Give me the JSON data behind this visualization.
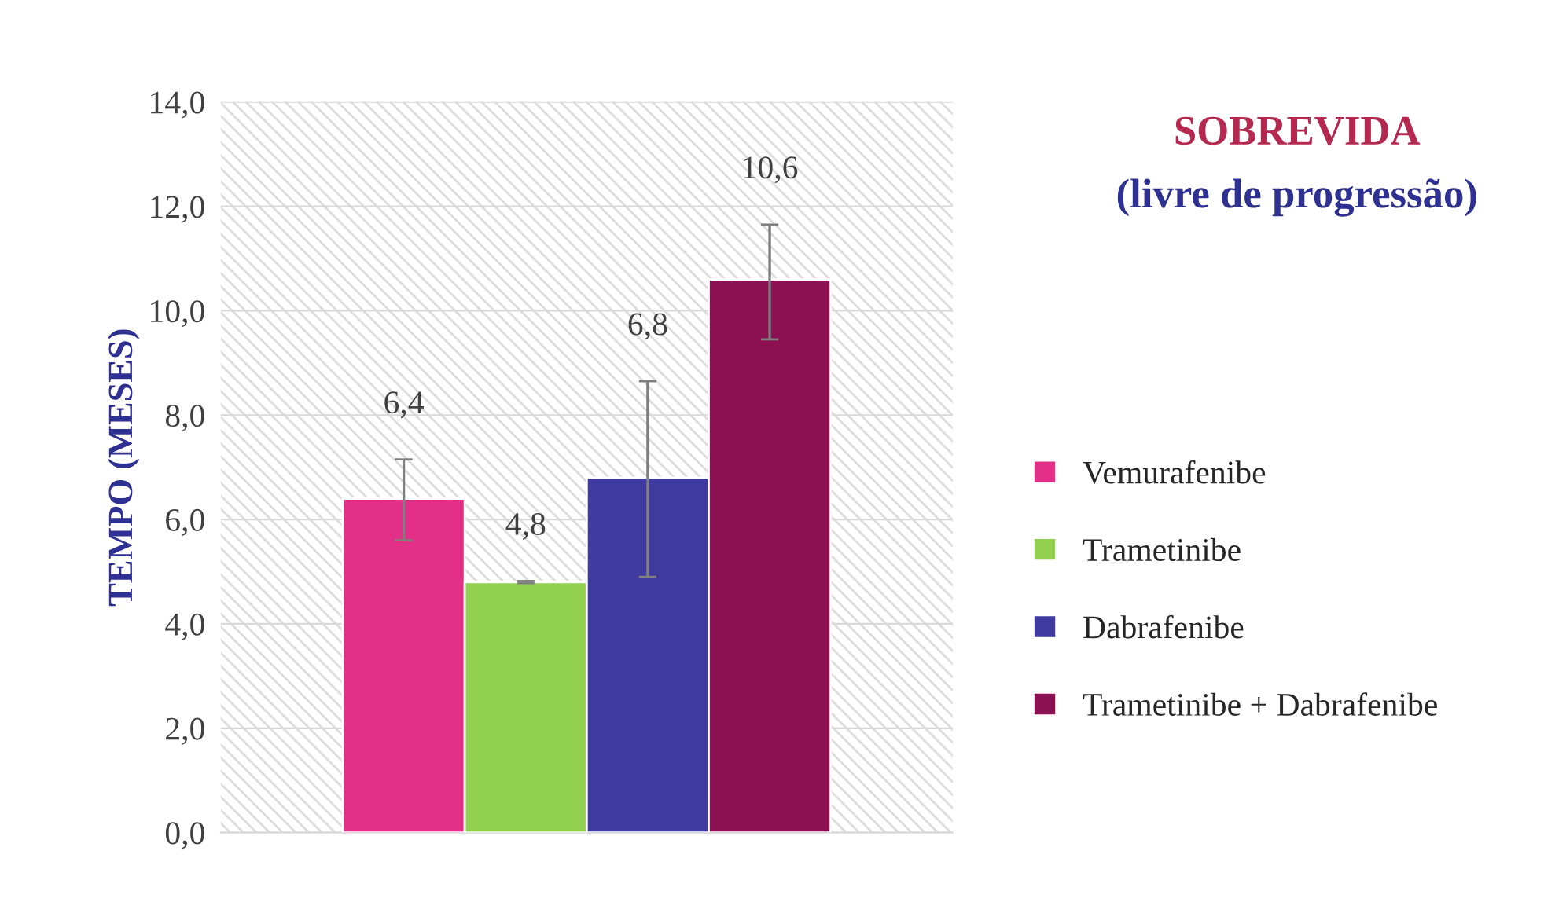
{
  "chart_data": {
    "type": "bar",
    "title": "SOBREVIDA",
    "subtitle": "(livre de progressão)",
    "ylabel": "TEMPO (MESES)",
    "categories": [
      null
    ],
    "series": [
      {
        "name": "Vemurafenibe",
        "color": "#e23088",
        "values": [
          6.4
        ],
        "errors": [
          [
            5.6,
            7.15
          ]
        ]
      },
      {
        "name": "Trametinibe",
        "color": "#92d050",
        "values": [
          4.8
        ],
        "errors": [
          [
            4.78,
            4.82
          ]
        ]
      },
      {
        "name": "Dabrafenibe",
        "color": "#3f3a9e",
        "values": [
          6.8
        ],
        "errors": [
          [
            4.9,
            8.65
          ]
        ]
      },
      {
        "name": "Trametinibe + Dabrafenibe",
        "color": "#8b1152",
        "values": [
          10.6
        ],
        "errors": [
          [
            9.45,
            11.65
          ]
        ]
      }
    ],
    "ylim": [
      0,
      14
    ],
    "yticks": [
      {
        "value": 0,
        "label": "0,0"
      },
      {
        "value": 2,
        "label": "2,0"
      },
      {
        "value": 4,
        "label": "4,0"
      },
      {
        "value": 6,
        "label": "6,0"
      },
      {
        "value": 8,
        "label": "8,0"
      },
      {
        "value": 10,
        "label": "10,0"
      },
      {
        "value": 12,
        "label": "12,0"
      },
      {
        "value": 14,
        "label": "14,0"
      }
    ],
    "value_labels": [
      "6,4",
      "4,8",
      "6,8",
      "10,6"
    ],
    "grid": "y",
    "legend": "right"
  }
}
